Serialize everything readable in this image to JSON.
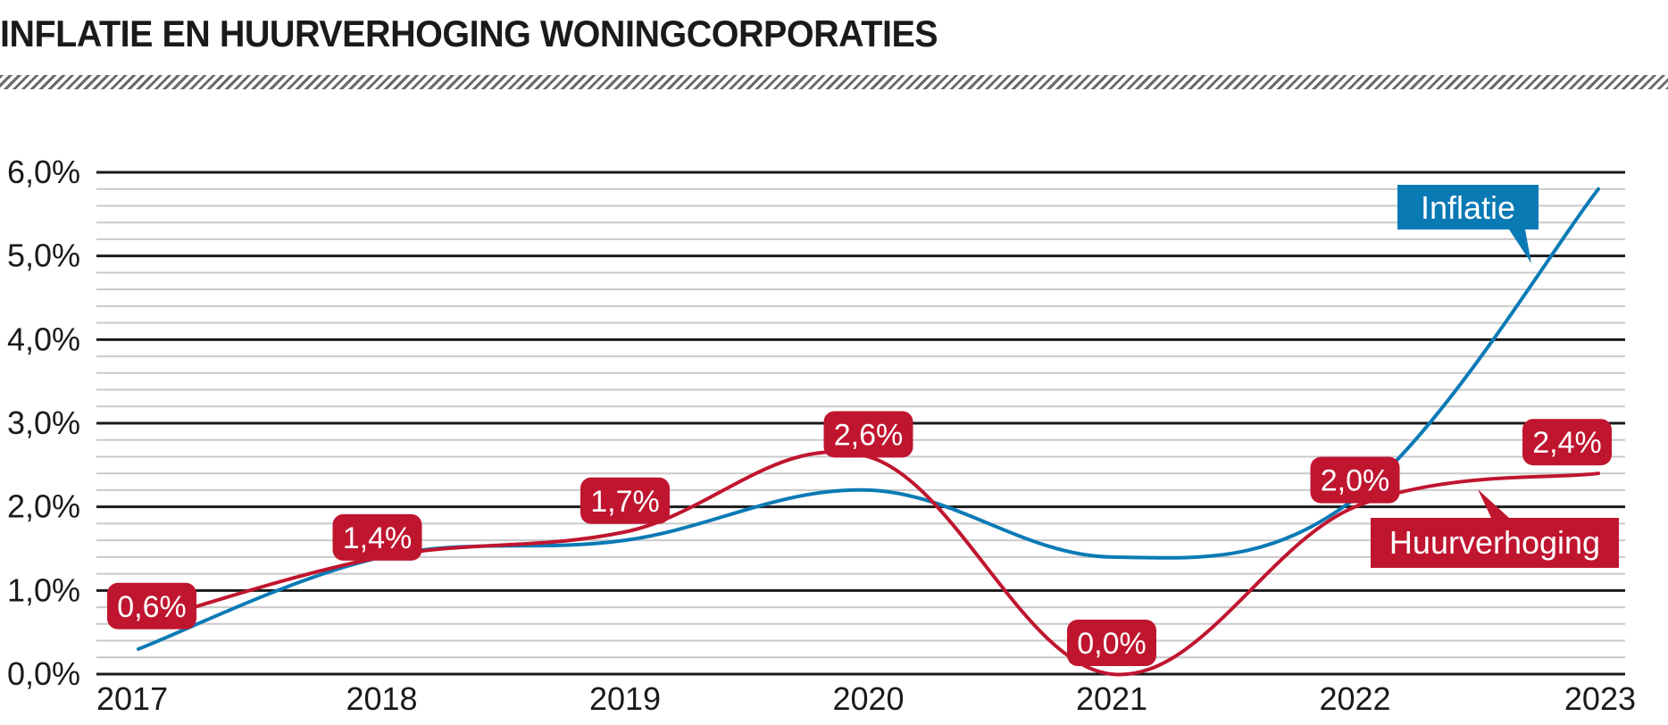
{
  "chart_data": {
    "type": "line",
    "title": "INFLATIE EN HUURVERHOGING WONINGCORPORATIES",
    "x": [
      "2017",
      "2018",
      "2019",
      "2020",
      "2021",
      "2022",
      "2023"
    ],
    "y_ticks": [
      "0,0%",
      "1,0%",
      "2,0%",
      "3,0%",
      "4,0%",
      "5,0%",
      "6,0%"
    ],
    "ylim": [
      0,
      6
    ],
    "grid": true,
    "series": [
      {
        "name": "Inflatie",
        "color": "#0a7ab5",
        "values": [
          0.3,
          1.4,
          1.6,
          2.2,
          1.4,
          2.1,
          5.8
        ]
      },
      {
        "name": "Huurverhoging",
        "color": "#c0152f",
        "values": [
          0.6,
          1.4,
          1.7,
          2.6,
          0.0,
          2.0,
          2.4
        ],
        "labels": [
          "0,6%",
          "1,4%",
          "1,7%",
          "2,6%",
          "0,0%",
          "2,0%",
          "2,4%"
        ]
      }
    ]
  }
}
